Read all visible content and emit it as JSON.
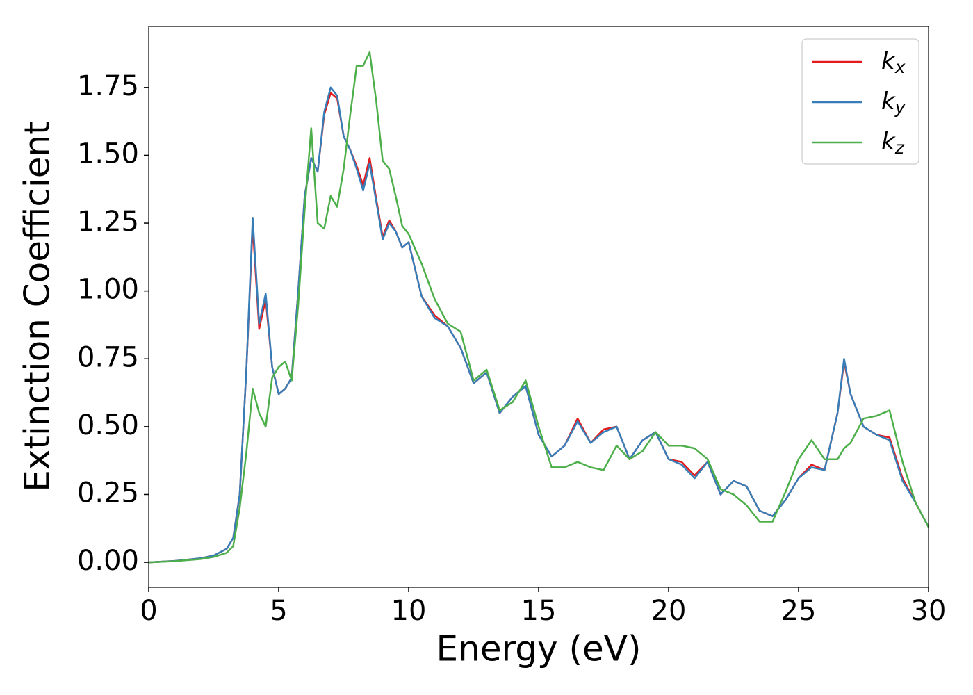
{
  "chart_data": {
    "type": "line",
    "xlabel": "Energy (eV)",
    "ylabel": "Extinction Coefficient",
    "x": [
      0,
      1,
      2,
      2.5,
      3,
      3.25,
      3.5,
      3.75,
      4,
      4.25,
      4.5,
      4.75,
      5,
      5.25,
      5.5,
      5.75,
      6,
      6.25,
      6.5,
      6.75,
      7,
      7.25,
      7.5,
      7.75,
      8,
      8.25,
      8.5,
      8.75,
      9,
      9.25,
      9.5,
      9.75,
      10,
      10.5,
      11,
      11.5,
      12,
      12.5,
      13,
      13.5,
      14,
      14.5,
      15,
      15.5,
      16,
      16.5,
      17,
      17.5,
      18,
      18.5,
      19,
      19.5,
      20,
      20.5,
      21,
      21.5,
      22,
      22.5,
      23,
      23.5,
      24,
      24.5,
      25,
      25.5,
      26,
      26.5,
      26.75,
      27,
      27.5,
      28,
      28.5,
      29,
      29.5,
      30
    ],
    "series": [
      {
        "name": "kx",
        "color": "#e41a1c",
        "values": [
          0,
          0.005,
          0.015,
          0.025,
          0.05,
          0.09,
          0.25,
          0.7,
          1.24,
          0.86,
          0.97,
          0.72,
          0.62,
          0.64,
          0.68,
          1.0,
          1.35,
          1.49,
          1.44,
          1.65,
          1.73,
          1.71,
          1.57,
          1.52,
          1.46,
          1.39,
          1.49,
          1.34,
          1.2,
          1.26,
          1.22,
          1.16,
          1.18,
          0.98,
          0.91,
          0.87,
          0.79,
          0.66,
          0.7,
          0.55,
          0.61,
          0.65,
          0.47,
          0.39,
          0.43,
          0.53,
          0.44,
          0.49,
          0.5,
          0.38,
          0.45,
          0.48,
          0.38,
          0.37,
          0.32,
          0.37,
          0.25,
          0.3,
          0.28,
          0.19,
          0.17,
          0.23,
          0.31,
          0.36,
          0.34,
          0.55,
          0.74,
          0.62,
          0.5,
          0.47,
          0.46,
          0.31,
          0.22,
          0.13
        ]
      },
      {
        "name": "ky",
        "color": "#377eb8",
        "values": [
          0,
          0.005,
          0.015,
          0.025,
          0.05,
          0.09,
          0.25,
          0.7,
          1.27,
          0.88,
          0.99,
          0.72,
          0.62,
          0.64,
          0.68,
          1.0,
          1.35,
          1.49,
          1.44,
          1.66,
          1.75,
          1.72,
          1.57,
          1.52,
          1.45,
          1.37,
          1.47,
          1.33,
          1.19,
          1.25,
          1.22,
          1.16,
          1.18,
          0.98,
          0.9,
          0.87,
          0.79,
          0.66,
          0.7,
          0.55,
          0.61,
          0.65,
          0.47,
          0.39,
          0.43,
          0.52,
          0.44,
          0.48,
          0.5,
          0.38,
          0.45,
          0.48,
          0.38,
          0.36,
          0.31,
          0.37,
          0.25,
          0.3,
          0.28,
          0.19,
          0.17,
          0.23,
          0.31,
          0.35,
          0.34,
          0.55,
          0.75,
          0.62,
          0.5,
          0.47,
          0.45,
          0.3,
          0.22,
          0.13
        ]
      },
      {
        "name": "kz",
        "color": "#4daf4a",
        "values": [
          0,
          0.004,
          0.012,
          0.02,
          0.035,
          0.06,
          0.2,
          0.4,
          0.64,
          0.55,
          0.5,
          0.68,
          0.72,
          0.74,
          0.67,
          0.95,
          1.3,
          1.6,
          1.25,
          1.23,
          1.35,
          1.31,
          1.45,
          1.65,
          1.83,
          1.83,
          1.88,
          1.7,
          1.48,
          1.45,
          1.35,
          1.24,
          1.21,
          1.1,
          0.97,
          0.88,
          0.85,
          0.67,
          0.71,
          0.56,
          0.59,
          0.67,
          0.5,
          0.35,
          0.35,
          0.37,
          0.35,
          0.34,
          0.43,
          0.38,
          0.41,
          0.48,
          0.43,
          0.43,
          0.42,
          0.38,
          0.27,
          0.25,
          0.21,
          0.15,
          0.15,
          0.26,
          0.38,
          0.45,
          0.38,
          0.38,
          0.42,
          0.44,
          0.53,
          0.54,
          0.56,
          0.37,
          0.22,
          0.13
        ]
      }
    ],
    "xlim": [
      0,
      30
    ],
    "xticks": [
      0,
      5,
      10,
      15,
      20,
      25,
      30
    ],
    "ylim": [
      -0.092,
      1.975
    ],
    "yticks": [
      {
        "value": 0,
        "label": "0.00"
      },
      {
        "value": 0.25,
        "label": "0.25"
      },
      {
        "value": 0.5,
        "label": "0.50"
      },
      {
        "value": 0.75,
        "label": "0.75"
      },
      {
        "value": 1,
        "label": "1.00"
      },
      {
        "value": 1.25,
        "label": "1.25"
      },
      {
        "value": 1.5,
        "label": "1.50"
      },
      {
        "value": 1.75,
        "label": "1.75"
      }
    ],
    "legend": "upper right",
    "grid": false
  }
}
